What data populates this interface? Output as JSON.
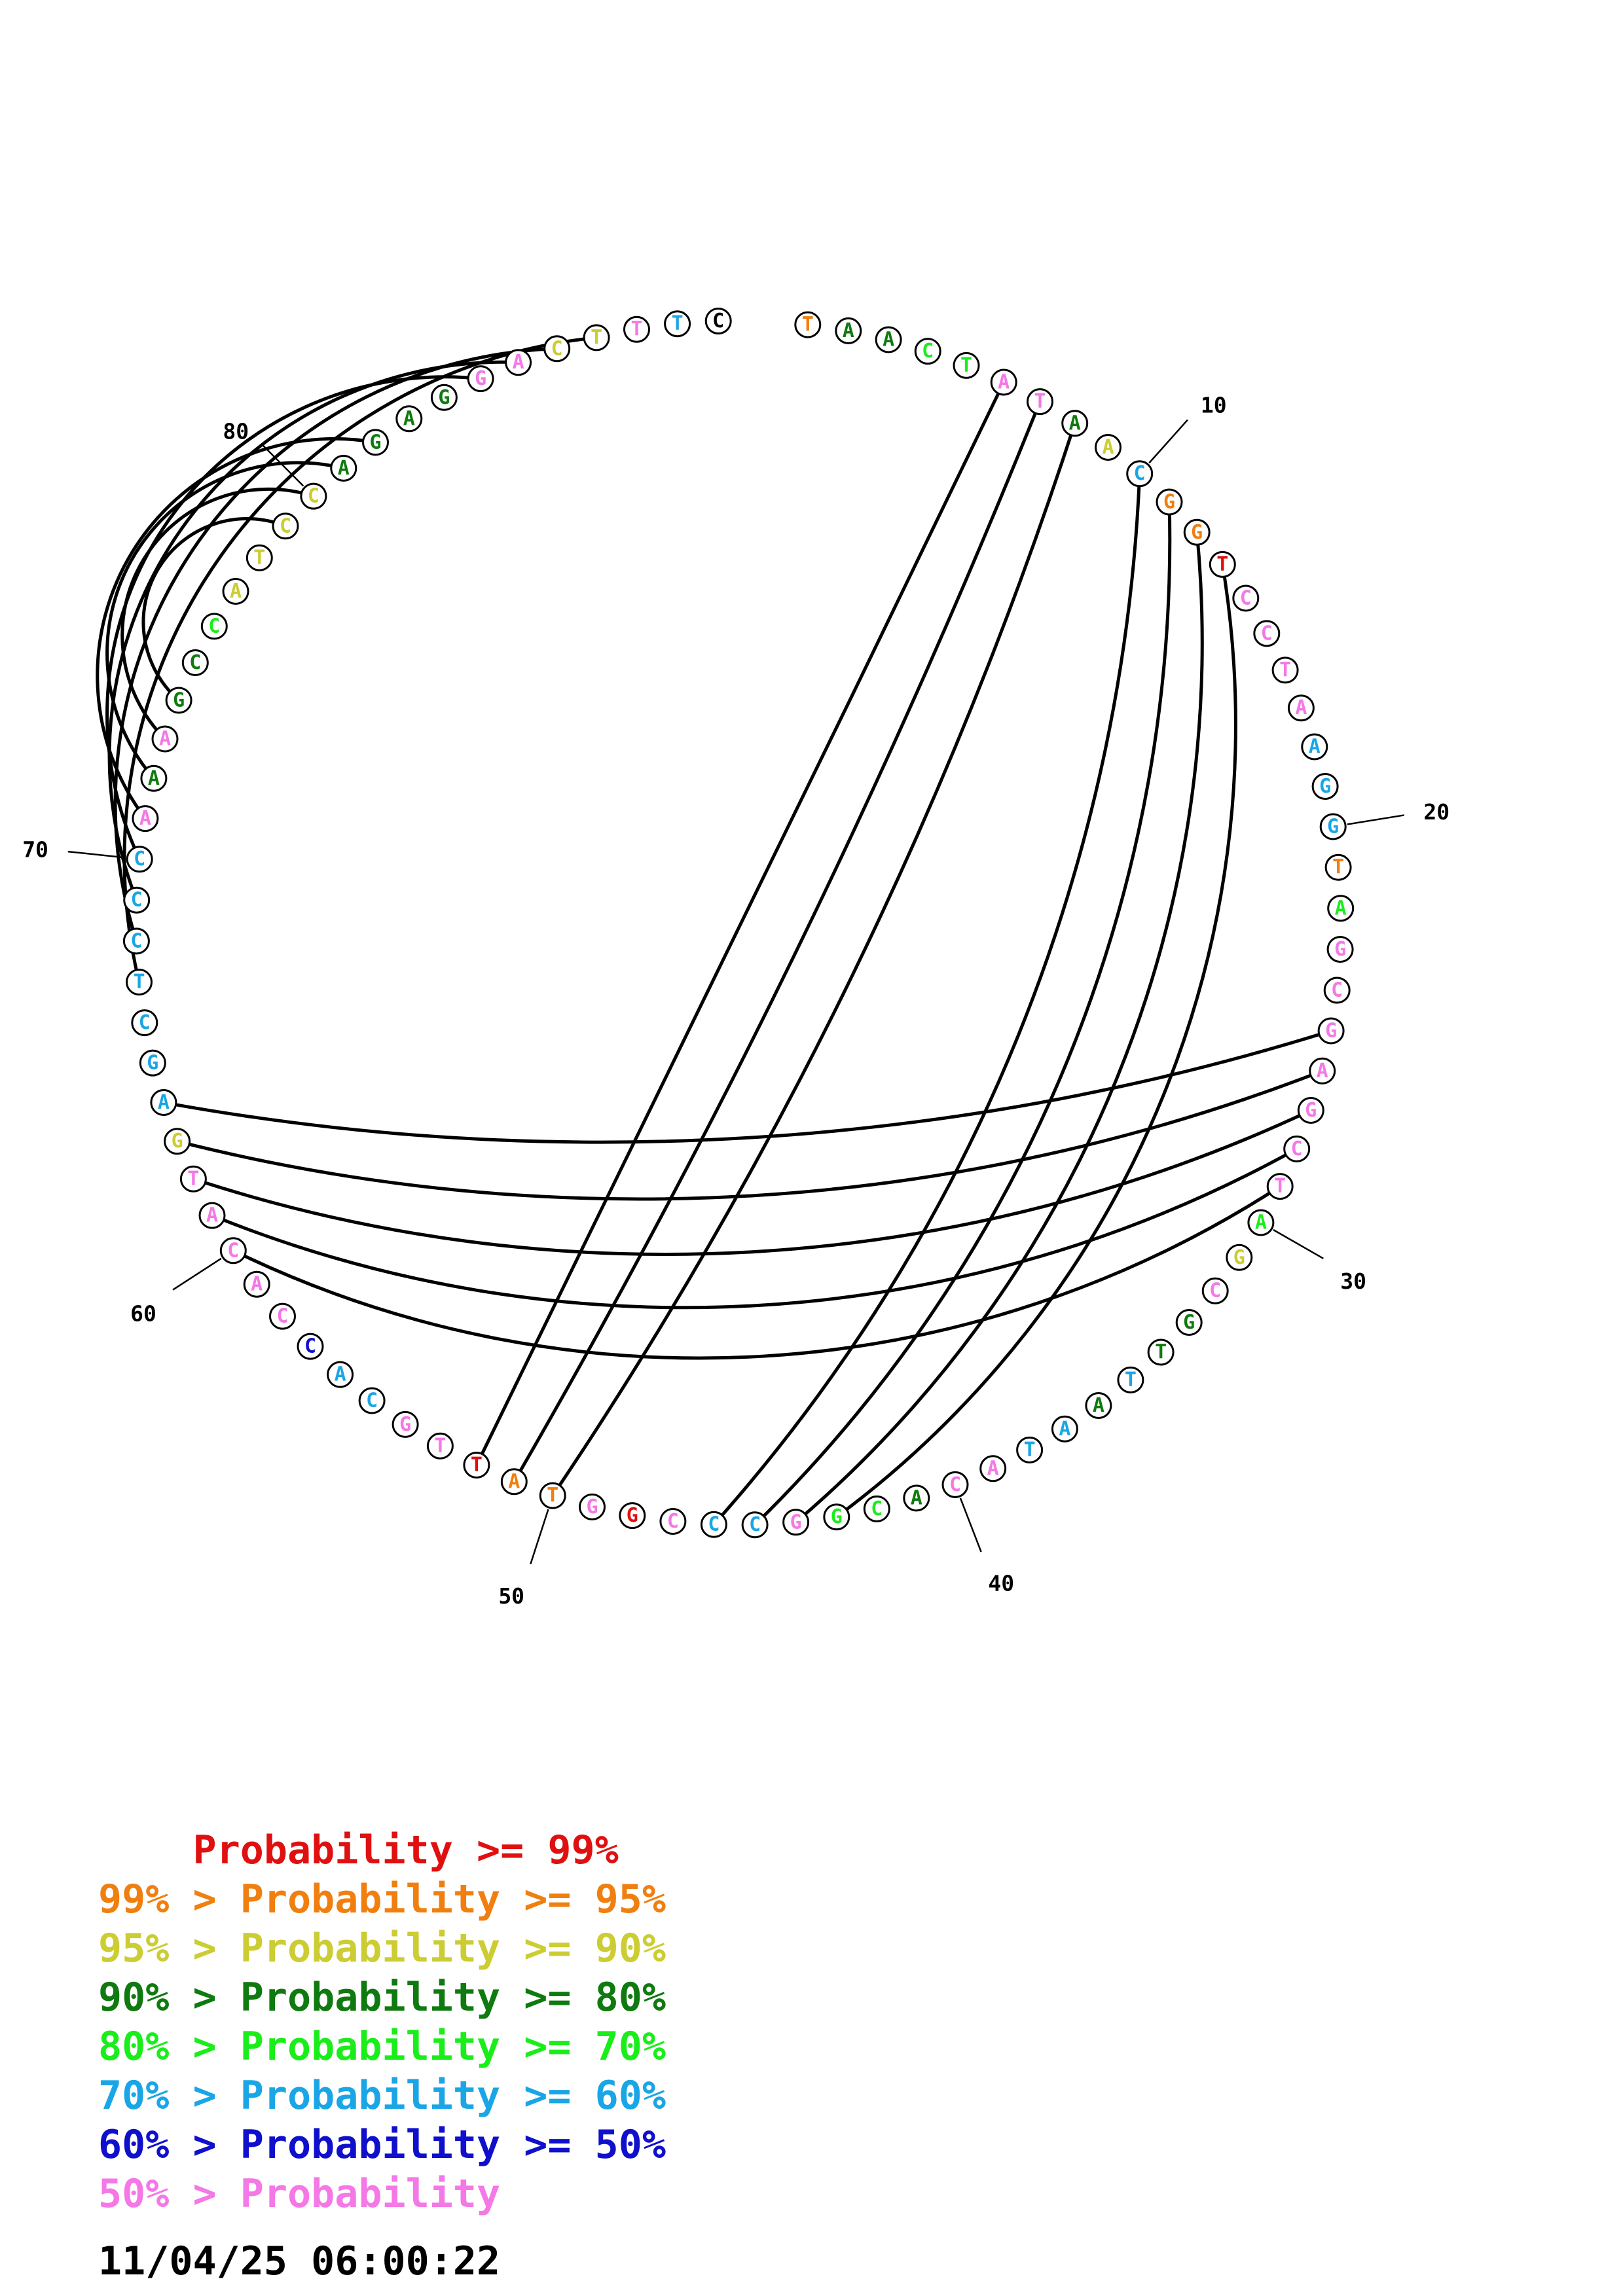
{
  "sequence": "TAACTATAACGGTCCTAAGGTAGCGAGCTAGCGTTAATACACGGCCCGGTATTGCACCACATGAGCTCCCAAAGCCATCCAGAGGACTTTC",
  "probability_classes": "7446611452778111122276111111165144242211466122181778112231111152222222141446555544441155120",
  "palette": {
    "1": "#f478e6",
    "2": "#1aa6e6",
    "3": "#1010cc",
    "4": "#0f7a0f",
    "5": "#cccc33",
    "6": "#1aee1a",
    "7": "#f07f0f",
    "8": "#e01010"
  },
  "pairs": [
    [
      6,
      52
    ],
    [
      7,
      51
    ],
    [
      8,
      50
    ],
    [
      10,
      46
    ],
    [
      11,
      45
    ],
    [
      12,
      44
    ],
    [
      13,
      43
    ],
    [
      25,
      64
    ],
    [
      26,
      63
    ],
    [
      27,
      62
    ],
    [
      28,
      61
    ],
    [
      29,
      60
    ],
    [
      67,
      88
    ],
    [
      68,
      87
    ],
    [
      69,
      86
    ],
    [
      70,
      85
    ],
    [
      71,
      82
    ],
    [
      72,
      81
    ],
    [
      73,
      80
    ],
    [
      74,
      79
    ]
  ],
  "tick_labels": [
    "10",
    "20",
    "30",
    "40",
    "50",
    "60",
    "70",
    "80"
  ],
  "legend": [
    {
      "text": "    Probability >= 99%",
      "color": "#e01010"
    },
    {
      "text": "99% > Probability >= 95%",
      "color": "#f07f0f"
    },
    {
      "text": "95% > Probability >= 90%",
      "color": "#cccc33"
    },
    {
      "text": "90% > Probability >= 80%",
      "color": "#0f7a0f"
    },
    {
      "text": "80% > Probability >= 70%",
      "color": "#1aee1a"
    },
    {
      "text": "70% > Probability >= 60%",
      "color": "#1aa6e6"
    },
    {
      "text": "60% > Probability >= 50%",
      "color": "#1010cc"
    },
    {
      "text": "50% > Probability",
      "color": "#f478e6"
    }
  ],
  "timestamp": "11/04/25 06:00:22"
}
